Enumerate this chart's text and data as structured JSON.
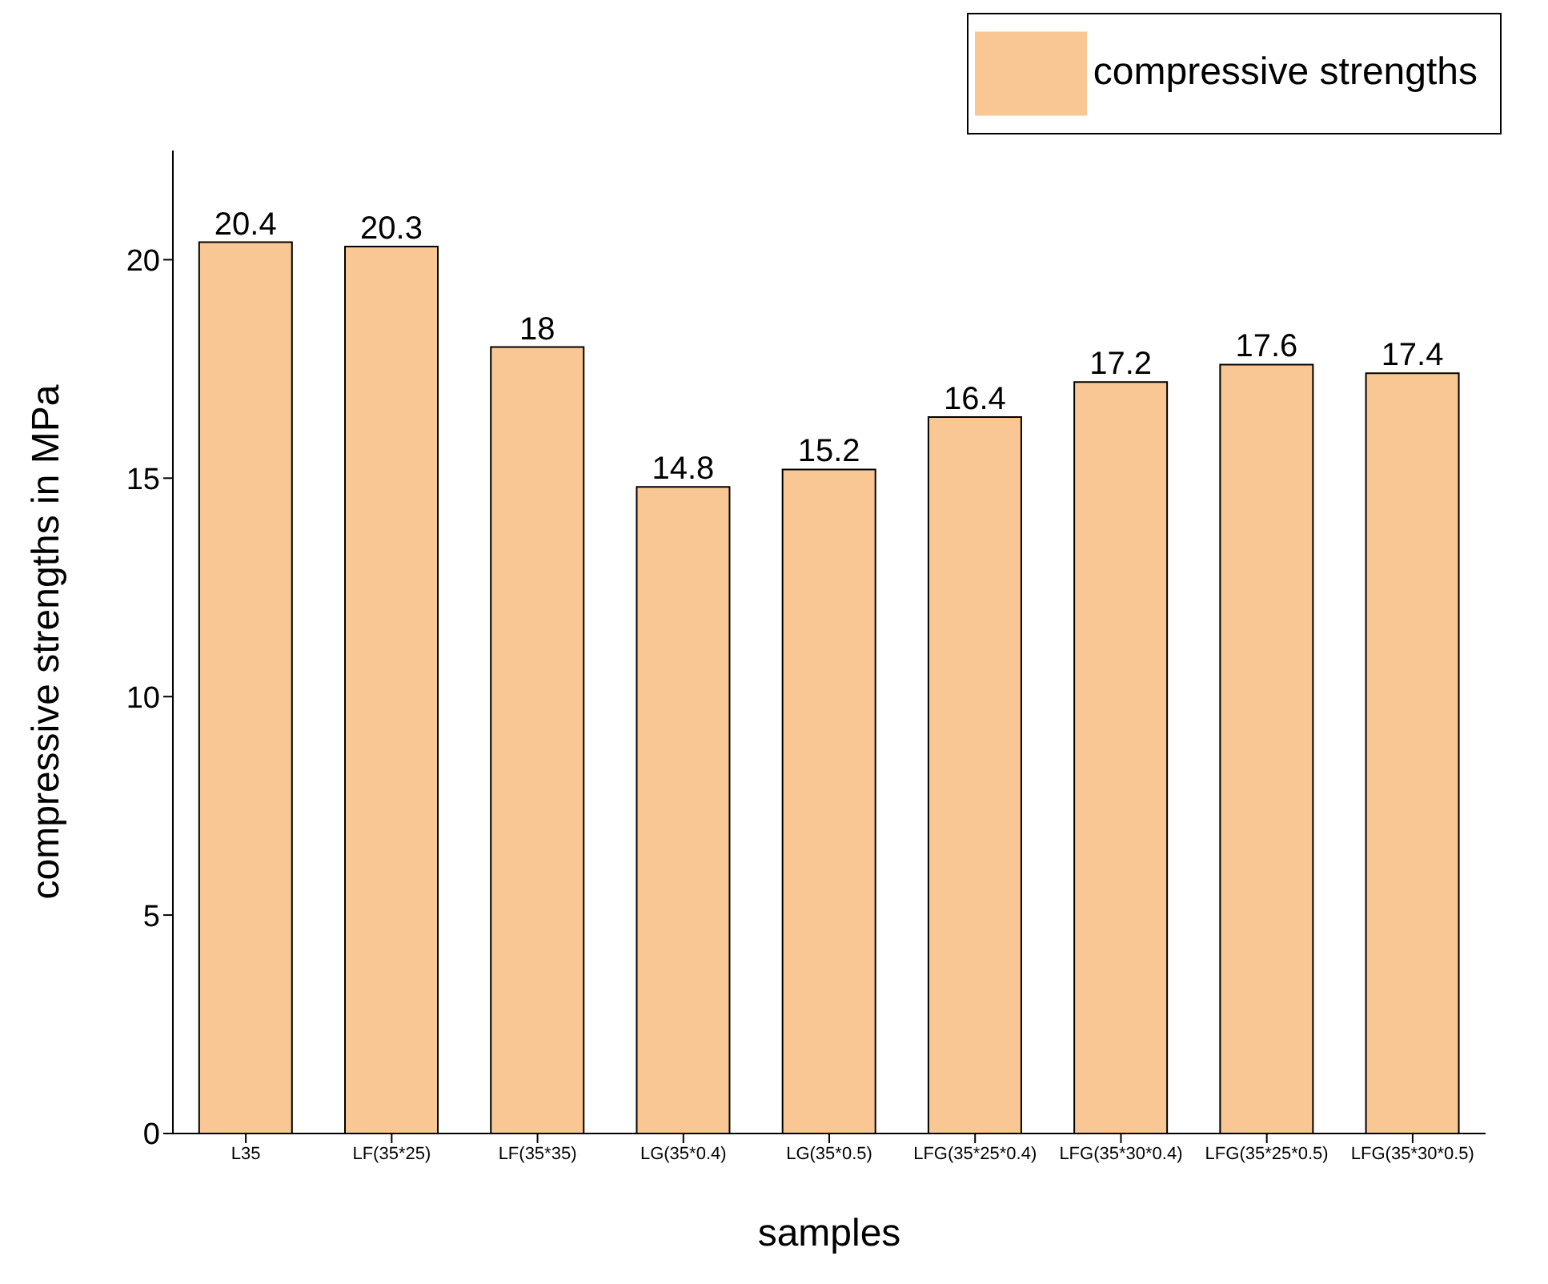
{
  "chart_data": {
    "type": "bar",
    "xlabel": "samples",
    "ylabel": "compressive strengths in MPa",
    "categories": [
      "L35",
      "LF(35*25)",
      "LF(35*35)",
      "LG(35*0.4)",
      "LG(35*0.5)",
      "LFG(35*25*0.4)",
      "LFG(35*30*0.4)",
      "LFG(35*25*0.5)",
      "LFG(35*30*0.5)"
    ],
    "series": [
      {
        "name": "compressive strengths",
        "color": "#f9c794",
        "values": [
          20.4,
          20.3,
          18,
          14.8,
          15.2,
          16.4,
          17.2,
          17.6,
          17.4
        ]
      }
    ],
    "ylim": [
      0,
      22.5
    ],
    "yticks": [
      0,
      5,
      10,
      15,
      20
    ],
    "data_labels": true,
    "legend": "top right",
    "grid": false
  }
}
